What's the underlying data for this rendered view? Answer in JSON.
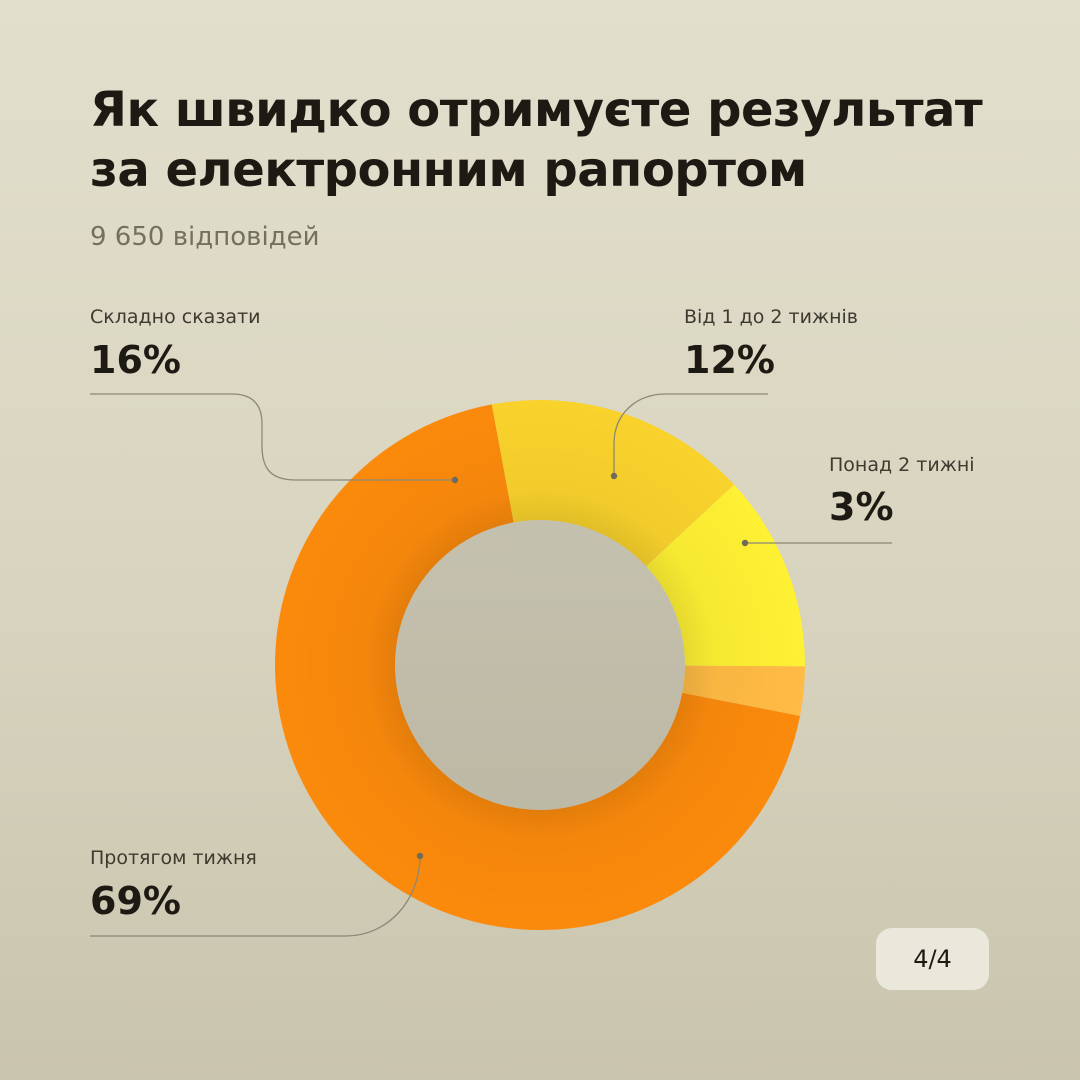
{
  "title": "Як швидко отримуєте результат за електронним рапортом",
  "subtitle": "9 650 відповідей",
  "page_indicator": "4/4",
  "colors": {
    "background": "#dedbc8",
    "text": "#1d1a14",
    "muted_text": "#74705f",
    "leader_line": "#8c8877"
  },
  "chart_data": {
    "type": "pie",
    "donut": true,
    "total_responses": "9 650",
    "series": [
      {
        "label": "Складно сказати",
        "value": 16,
        "display": "16%",
        "color": "#f9d22c"
      },
      {
        "label": "Від 1 до 2 тижнів",
        "value": 12,
        "display": "12%",
        "color": "#fef033"
      },
      {
        "label": "Понад 2 тижні",
        "value": 3,
        "display": "3%",
        "color": "#ffbb44"
      },
      {
        "label": "Протягом тижня",
        "value": 69,
        "display": "69%",
        "color": "#fb8a0c"
      }
    ]
  }
}
